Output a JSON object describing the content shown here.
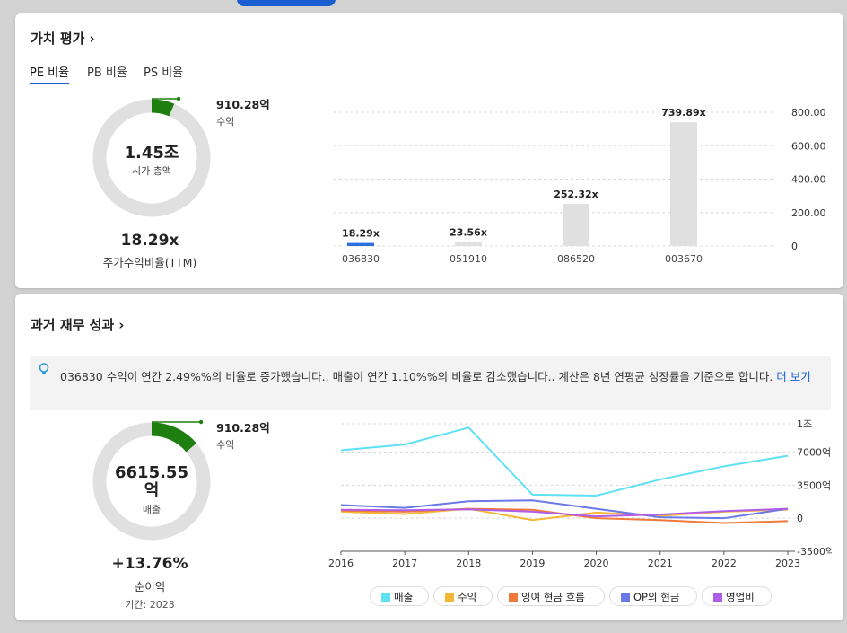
{
  "valuation": {
    "title": "가치 평가",
    "tabs": [
      {
        "label": "PE 비율"
      },
      {
        "label": "PB 비율"
      },
      {
        "label": "PS 비율"
      }
    ],
    "active_tab": 0,
    "donut": {
      "center_value": "1.45조",
      "center_label": "시가 총액",
      "outer_value": "910.28억",
      "outer_label": "수익",
      "fraction": 0.063,
      "ring_color": "#e0e0e0",
      "slice_color": "#1e7e10"
    },
    "ratio_value": "18.29x",
    "ratio_label": "주가수익비율(TTM)",
    "chart_data": {
      "type": "bar",
      "categories": [
        "036830",
        "051910",
        "086520",
        "003670"
      ],
      "values": [
        18.29,
        23.56,
        252.32,
        739.89
      ],
      "data_labels": [
        "18.29x",
        "23.56x",
        "252.32x",
        "739.89x"
      ],
      "yticks": [
        "800.00",
        "600.00",
        "400.00",
        "200.00",
        "0"
      ],
      "ylim": [
        0,
        800
      ],
      "grid": true,
      "bar_color": "#e0e0e0",
      "highlight_color": "#2d6fdc"
    }
  },
  "history": {
    "title": "과거 재무 성과",
    "info": {
      "text": "036830 수익이 연간 2.49%%의 비율로 증가했습니다., 매출이 연간 1.10%%의 비율로 감소했습니다.. 계산은 8년 연평균 성장률을 기준으로 합니다.",
      "more": "더 보기"
    },
    "donut": {
      "center_value_line1": "6615.55",
      "center_value_line2": "억",
      "center_label": "매출",
      "outer_value": "910.28억",
      "outer_label": "수익",
      "fraction": 0.138,
      "ring_color": "#e0e0e0",
      "slice_color": "#1e7e10"
    },
    "growth_value": "+13.76%",
    "growth_label": "순이익",
    "period": "기간: 2023",
    "chart_data": {
      "type": "line",
      "x": [
        "2016",
        "2017",
        "2018",
        "2019",
        "2020",
        "2021",
        "2022",
        "2023"
      ],
      "yticks": [
        "1조",
        "7000억",
        "3500억",
        "0",
        "-3500억"
      ],
      "ylim": [
        -3500,
        10000
      ],
      "series": [
        {
          "name": "매출",
          "color": "#5ee0f5",
          "values": [
            7200,
            7800,
            9600,
            2500,
            2400,
            4100,
            5500,
            6615
          ]
        },
        {
          "name": "수익",
          "color": "#f5b836",
          "values": [
            700,
            450,
            1000,
            -200,
            600,
            250,
            700,
            910
          ]
        },
        {
          "name": "잉여 현금 흐름",
          "color": "#f07a3c",
          "values": [
            800,
            700,
            1000,
            900,
            0,
            -200,
            -500,
            -300
          ]
        },
        {
          "name": "OP의 현금",
          "color": "#6a78e8",
          "values": [
            1400,
            1100,
            1800,
            1900,
            1000,
            100,
            0,
            1000
          ]
        },
        {
          "name": "영업비",
          "color": "#b05ee8",
          "values": [
            900,
            850,
            950,
            700,
            200,
            400,
            750,
            1000
          ]
        }
      ],
      "grid": true,
      "legend_position": "bottom"
    }
  }
}
